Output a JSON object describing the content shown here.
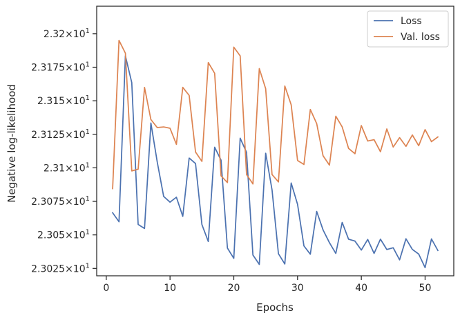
{
  "chart_data": {
    "type": "line",
    "xlabel": "Epochs",
    "ylabel": "Negative log-likelihood",
    "xlim": [
      -1.5,
      54.5
    ],
    "ylim": [
      23.0195,
      23.2205
    ],
    "x_ticks": [
      {
        "value": 0,
        "label": "0"
      },
      {
        "value": 10,
        "label": "10"
      },
      {
        "value": 20,
        "label": "20"
      },
      {
        "value": 30,
        "label": "30"
      },
      {
        "value": 40,
        "label": "40"
      },
      {
        "value": 50,
        "label": "50"
      }
    ],
    "y_ticks": [
      {
        "value": 23.025,
        "mantissa": "2.3025",
        "base": "10",
        "exp": "1"
      },
      {
        "value": 23.05,
        "mantissa": "2.305",
        "base": "10",
        "exp": "1"
      },
      {
        "value": 23.075,
        "mantissa": "2.3075",
        "base": "10",
        "exp": "1"
      },
      {
        "value": 23.1,
        "mantissa": "2.31",
        "base": "10",
        "exp": "1"
      },
      {
        "value": 23.125,
        "mantissa": "2.3125",
        "base": "10",
        "exp": "1"
      },
      {
        "value": 23.15,
        "mantissa": "2.315",
        "base": "10",
        "exp": "1"
      },
      {
        "value": 23.175,
        "mantissa": "2.3175",
        "base": "10",
        "exp": "1"
      },
      {
        "value": 23.2,
        "mantissa": "2.32",
        "base": "10",
        "exp": "1"
      }
    ],
    "legend_position": "top-right",
    "grid": false,
    "x": [
      1,
      2,
      3,
      4,
      5,
      6,
      7,
      8,
      9,
      10,
      11,
      12,
      13,
      14,
      15,
      16,
      17,
      18,
      19,
      20,
      21,
      22,
      23,
      24,
      25,
      26,
      27,
      28,
      29,
      30,
      31,
      32,
      33,
      34,
      35,
      36,
      37,
      38,
      39,
      40,
      41,
      42,
      43,
      44,
      45,
      46,
      47,
      48,
      49,
      50,
      51,
      52
    ],
    "series": [
      {
        "name": "Loss",
        "color": "#4c72b0",
        "values": [
          23.0665,
          23.0598,
          23.1835,
          23.1635,
          23.0578,
          23.0548,
          23.1334,
          23.1042,
          23.0787,
          23.0744,
          23.0781,
          23.0638,
          23.1073,
          23.1032,
          23.0577,
          23.0451,
          23.1154,
          23.1057,
          23.0402,
          23.0325,
          23.1221,
          23.1115,
          23.035,
          23.028,
          23.1109,
          23.0835,
          23.036,
          23.0283,
          23.0887,
          23.0728,
          23.0418,
          23.0356,
          23.0675,
          23.0537,
          23.0442,
          23.0362,
          23.0593,
          23.0468,
          23.0454,
          23.0387,
          23.0466,
          23.0362,
          23.0468,
          23.0391,
          23.0404,
          23.0314,
          23.0471,
          23.0392,
          23.0357,
          23.0256,
          23.047,
          23.0384
        ]
      },
      {
        "name": "Val. loss",
        "color": "#dd8452",
        "values": [
          23.0845,
          23.195,
          23.1855,
          23.0977,
          23.099,
          23.16,
          23.136,
          23.13,
          23.1305,
          23.1295,
          23.1175,
          23.16,
          23.154,
          23.1118,
          23.1048,
          23.1785,
          23.1705,
          23.094,
          23.089,
          23.19,
          23.1835,
          23.095,
          23.088,
          23.174,
          23.159,
          23.095,
          23.0895,
          23.161,
          23.147,
          23.1055,
          23.1025,
          23.1435,
          23.133,
          23.109,
          23.102,
          23.1385,
          23.1305,
          23.1145,
          23.1105,
          23.1315,
          23.12,
          23.121,
          23.112,
          23.129,
          23.1155,
          23.1225,
          23.116,
          23.1245,
          23.1165,
          23.1285,
          23.1195,
          23.123
        ]
      }
    ]
  }
}
